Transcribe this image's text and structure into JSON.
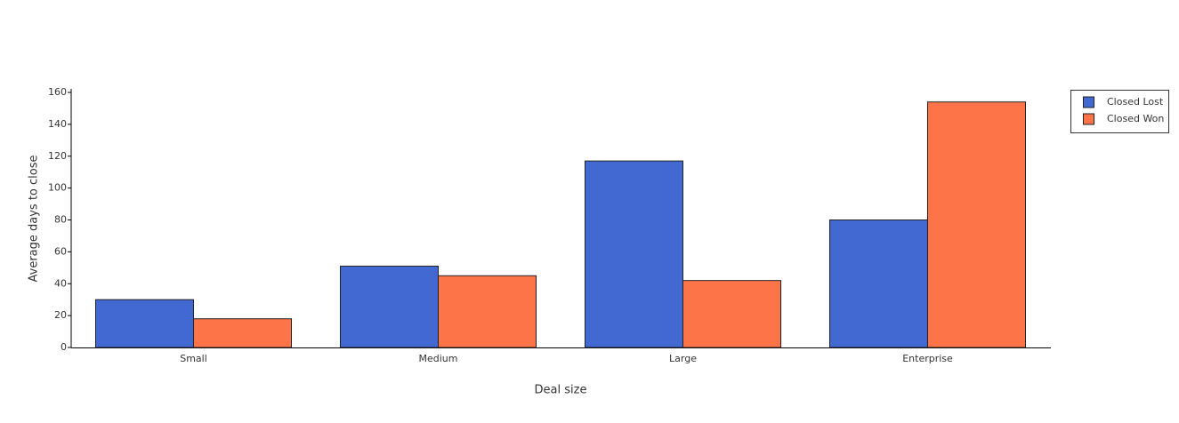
{
  "chart_data": {
    "type": "bar",
    "x_label": "Deal size",
    "y_label": "Average days to close",
    "categories": [
      "Small",
      "Medium",
      "Large",
      "Enterprise"
    ],
    "series": [
      {
        "name": "Closed Lost",
        "color": "#4169d1",
        "values": [
          30,
          51,
          117,
          80
        ]
      },
      {
        "name": "Closed Won",
        "color": "#fe7449",
        "values": [
          18,
          45,
          42,
          154
        ]
      }
    ],
    "ylim": [
      0,
      160
    ],
    "yticks": [
      0,
      20,
      40,
      60,
      80,
      100,
      120,
      140,
      160
    ],
    "grid": false,
    "legend": "top-right"
  }
}
